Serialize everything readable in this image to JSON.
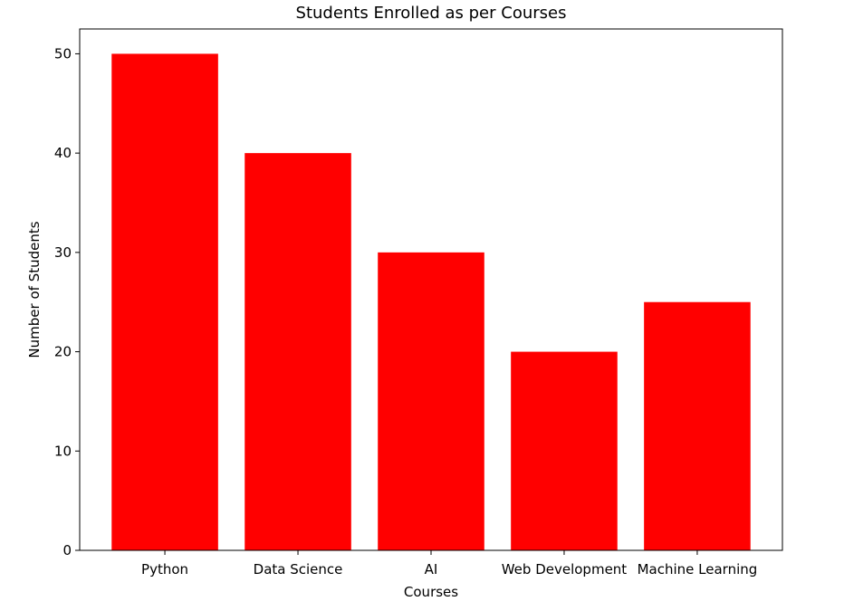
{
  "chart_data": {
    "type": "bar",
    "title": "Students Enrolled as per Courses",
    "xlabel": "Courses",
    "ylabel": "Number of Students",
    "categories": [
      "Python",
      "Data Science",
      "AI",
      "Web Development",
      "Machine Learning"
    ],
    "values": [
      50,
      40,
      30,
      20,
      25
    ],
    "ylim": [
      0,
      52.5
    ],
    "yticks": [
      0,
      10,
      20,
      30,
      40,
      50
    ],
    "bar_color": "#ff0000",
    "grid": false,
    "legend": "none"
  }
}
